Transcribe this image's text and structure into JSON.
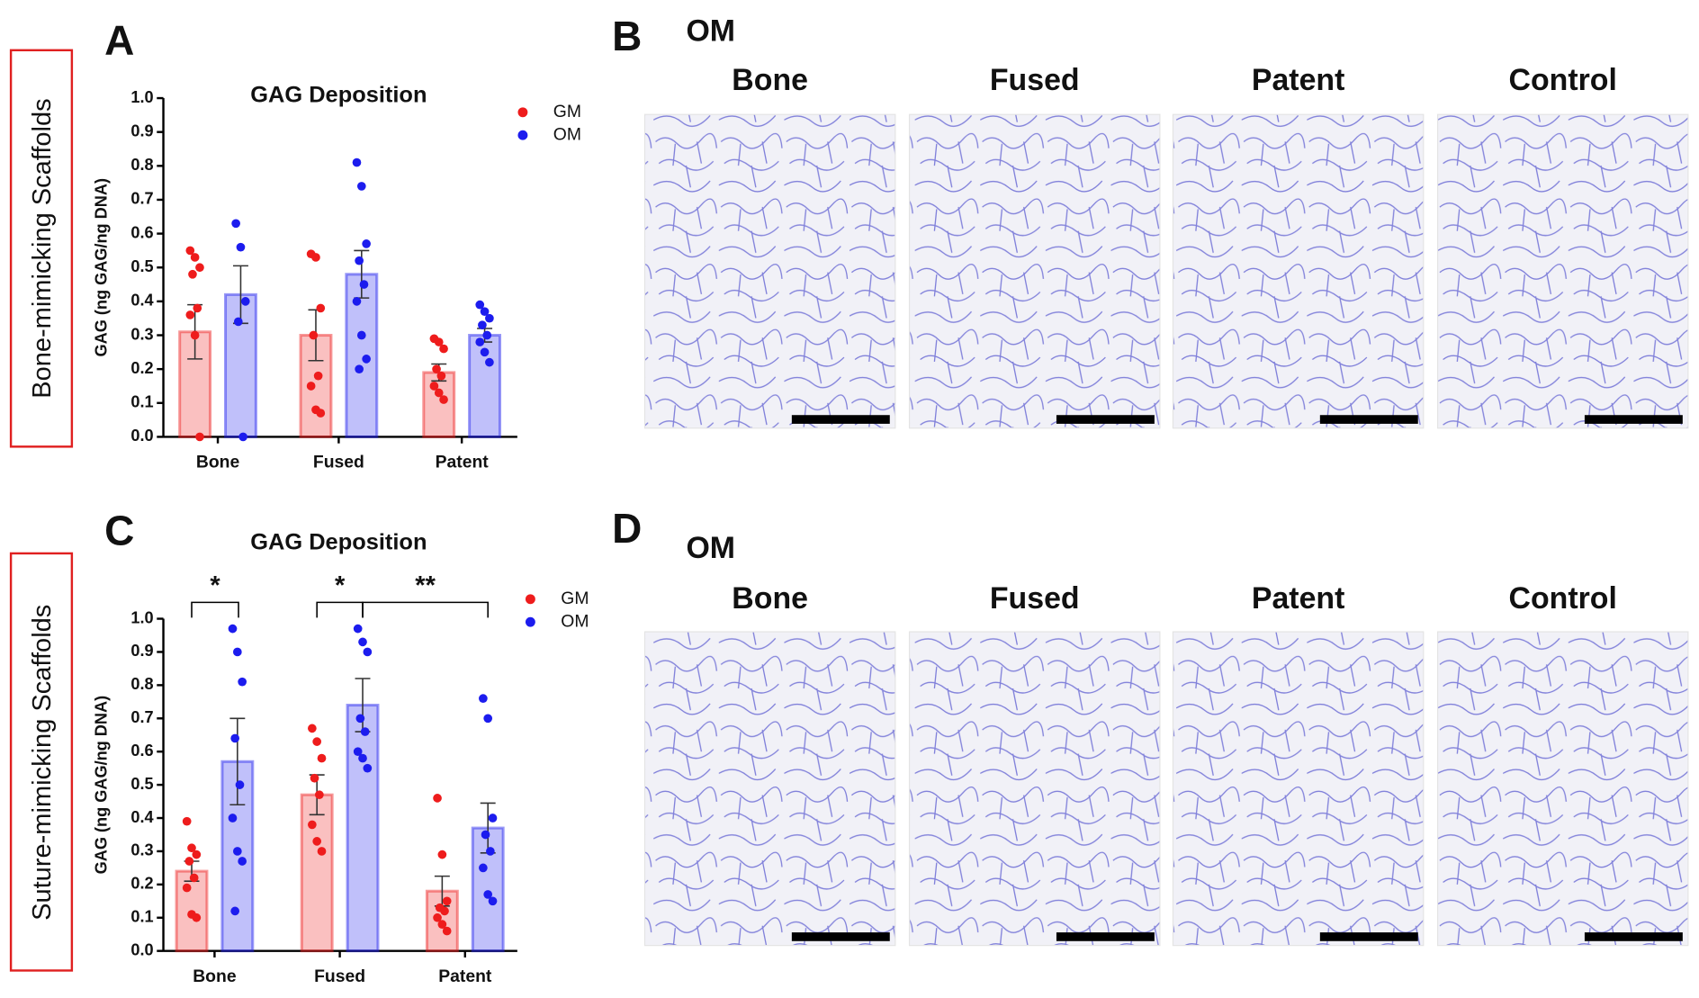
{
  "side_labels": [
    "Bone-mimicking Scaffolds",
    "Suture-mimicking Scaffolds"
  ],
  "panel_letters": [
    "A",
    "B",
    "C",
    "D"
  ],
  "micrographs": [
    {
      "title": "OM",
      "labels": [
        "Bone",
        "Fused",
        "Patent",
        "Control"
      ]
    },
    {
      "title": "OM",
      "labels": [
        "Bone",
        "Fused",
        "Patent",
        "Control"
      ]
    }
  ],
  "chart_data": [
    {
      "type": "bar",
      "title": "GAG Deposition",
      "y_label": "GAG (ng GAG/ng DNA)",
      "categories": [
        "Bone",
        "Fused",
        "Patent"
      ],
      "ylim": [
        0,
        1
      ],
      "yticks": [
        {
          "value": 0,
          "label": "0.0"
        },
        {
          "value": 0.1,
          "label": "0.1"
        },
        {
          "value": 0.2,
          "label": "0.2"
        },
        {
          "value": 0.3,
          "label": "0.3"
        },
        {
          "value": 0.4,
          "label": "0.4"
        },
        {
          "value": 0.5,
          "label": "0.5"
        },
        {
          "value": 0.6,
          "label": "0.6"
        },
        {
          "value": 0.7,
          "label": "0.7"
        },
        {
          "value": 0.8,
          "label": "0.8"
        },
        {
          "value": 0.9,
          "label": "0.9"
        },
        {
          "value": 1,
          "label": "1.0"
        }
      ],
      "legend": "upper right",
      "series": [
        {
          "name": "GM",
          "color": "#ee1c1c",
          "values": [
            0.31,
            0.3,
            0.19
          ],
          "errors": [
            0.08,
            0.075,
            0.025
          ],
          "points": [
            [
              0.55,
              0.53,
              0.5,
              0.48,
              0.38,
              0.36,
              0.3,
              0.0
            ],
            [
              0.54,
              0.53,
              0.38,
              0.3,
              0.18,
              0.15,
              0.08,
              0.07
            ],
            [
              0.29,
              0.28,
              0.26,
              0.2,
              0.18,
              0.15,
              0.13,
              0.11
            ]
          ]
        },
        {
          "name": "OM",
          "color": "#1c1cee",
          "values": [
            0.42,
            0.48,
            0.3
          ],
          "errors": [
            0.085,
            0.07,
            0.02
          ],
          "points": [
            [
              0.63,
              0.56,
              0.4,
              0.34,
              0.0
            ],
            [
              0.81,
              0.74,
              0.57,
              0.52,
              0.45,
              0.4,
              0.3,
              0.23,
              0.2
            ],
            [
              0.39,
              0.37,
              0.35,
              0.33,
              0.3,
              0.28,
              0.25,
              0.22
            ]
          ]
        }
      ]
    },
    {
      "type": "bar",
      "title": "GAG Deposition",
      "y_label": "GAG (ng GAG/ng DNA)",
      "categories": [
        "Bone",
        "Fused",
        "Patent"
      ],
      "ylim": [
        0,
        1
      ],
      "yticks": [
        {
          "value": 0,
          "label": "0.0"
        },
        {
          "value": 0.1,
          "label": "0.1"
        },
        {
          "value": 0.2,
          "label": "0.2"
        },
        {
          "value": 0.3,
          "label": "0.3"
        },
        {
          "value": 0.4,
          "label": "0.4"
        },
        {
          "value": 0.5,
          "label": "0.5"
        },
        {
          "value": 0.6,
          "label": "0.6"
        },
        {
          "value": 0.7,
          "label": "0.7"
        },
        {
          "value": 0.8,
          "label": "0.8"
        },
        {
          "value": 0.9,
          "label": "0.9"
        },
        {
          "value": 1,
          "label": "1.0"
        }
      ],
      "legend": "upper right",
      "annotations": [
        "*",
        "*",
        "**"
      ],
      "series": [
        {
          "name": "GM",
          "color": "#ee1c1c",
          "values": [
            0.24,
            0.47,
            0.18
          ],
          "errors": [
            0.03,
            0.06,
            0.045
          ],
          "points": [
            [
              0.39,
              0.31,
              0.29,
              0.27,
              0.22,
              0.19,
              0.11,
              0.1
            ],
            [
              0.67,
              0.63,
              0.58,
              0.52,
              0.47,
              0.38,
              0.33,
              0.3
            ],
            [
              0.46,
              0.29,
              0.15,
              0.13,
              0.12,
              0.1,
              0.08,
              0.06
            ]
          ]
        },
        {
          "name": "OM",
          "color": "#1c1cee",
          "values": [
            0.57,
            0.74,
            0.37
          ],
          "errors": [
            0.13,
            0.08,
            0.075
          ],
          "points": [
            [
              0.97,
              0.9,
              0.81,
              0.64,
              0.5,
              0.4,
              0.3,
              0.27,
              0.12
            ],
            [
              0.97,
              0.93,
              0.9,
              0.7,
              0.66,
              0.6,
              0.58,
              0.55
            ],
            [
              0.76,
              0.7,
              0.4,
              0.35,
              0.3,
              0.25,
              0.17,
              0.15
            ]
          ]
        }
      ]
    }
  ]
}
